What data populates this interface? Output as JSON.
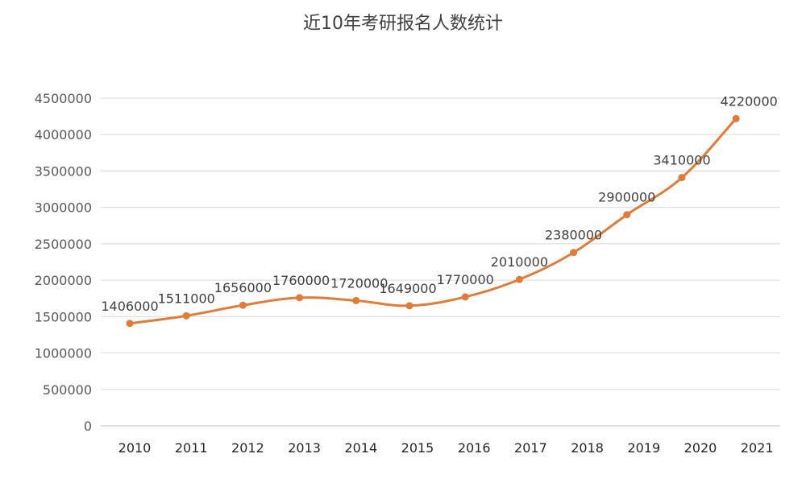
{
  "chart_data": {
    "type": "line",
    "title": "近10年考研报名人数统计",
    "xlabel": "",
    "ylabel": "",
    "categories": [
      "2010",
      "2011",
      "2012",
      "2013",
      "2014",
      "2015",
      "2016",
      "2017",
      "2018",
      "2019",
      "2020",
      "2021"
    ],
    "series": [
      {
        "values": [
          1406000,
          1511000,
          1656000,
          1760000,
          1720000,
          1649000,
          1770000,
          2010000,
          2380000,
          2900000,
          3410000,
          4220000
        ],
        "data_labels": [
          "1406000",
          "1511000",
          "1656000",
          "1760000",
          "1720000",
          "1649000",
          "1770000",
          "2010000",
          "2380000",
          "2900000",
          "3410000",
          "4220000"
        ],
        "color": "#e07b39"
      }
    ],
    "y_ticks": [
      "0",
      "500000",
      "1000000",
      "1500000",
      "2000000",
      "2500000",
      "3000000",
      "3500000",
      "4000000",
      "4500000"
    ],
    "ylim": [
      0,
      4500000
    ],
    "grid": true,
    "legend": "none"
  }
}
